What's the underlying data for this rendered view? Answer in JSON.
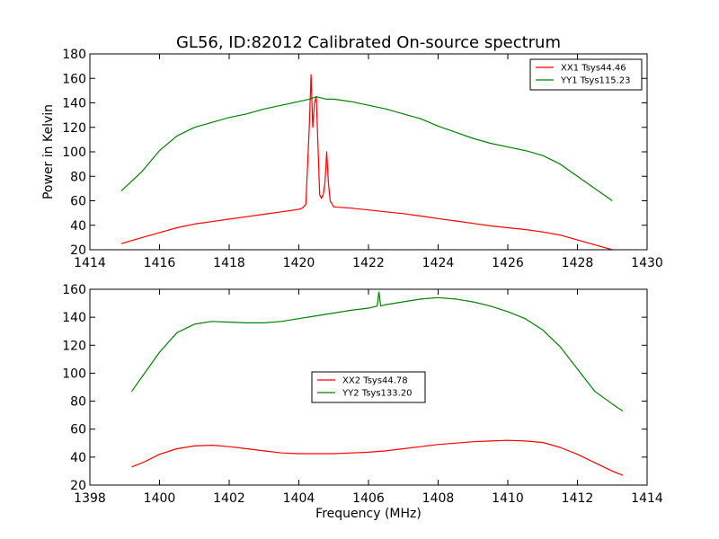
{
  "chart_data": [
    {
      "type": "line",
      "title": "GL56, ID:82012 Calibrated On-source spectrum",
      "xlabel": "",
      "ylabel": "Power in Kelvin",
      "xlim": [
        1414,
        1430
      ],
      "ylim": [
        20,
        180
      ],
      "xticks": [
        1414,
        1416,
        1418,
        1420,
        1422,
        1424,
        1426,
        1428,
        1430
      ],
      "yticks": [
        20,
        40,
        60,
        80,
        100,
        120,
        140,
        160,
        180
      ],
      "legend_position": "top-right",
      "series": [
        {
          "name": "XX1 Tsys44.46",
          "color": "#ff0000",
          "x": [
            1414.9,
            1415.5,
            1416.0,
            1416.5,
            1417.0,
            1417.5,
            1418.0,
            1418.5,
            1419.0,
            1419.5,
            1420.0,
            1420.1,
            1420.2,
            1420.3,
            1420.35,
            1420.4,
            1420.45,
            1420.5,
            1420.55,
            1420.6,
            1420.65,
            1420.7,
            1420.75,
            1420.8,
            1420.85,
            1420.9,
            1421.0,
            1421.5,
            1422.0,
            1422.5,
            1423.0,
            1423.5,
            1424.0,
            1424.5,
            1425.0,
            1425.5,
            1426.0,
            1426.5,
            1427.0,
            1427.5,
            1428.0,
            1428.5,
            1429.0
          ],
          "y": [
            25,
            30,
            34,
            38,
            41,
            43,
            45,
            47,
            49,
            51,
            53,
            54,
            57,
            120,
            163,
            120,
            140,
            145,
            105,
            65,
            62,
            65,
            75,
            100,
            75,
            60,
            55,
            54,
            52.5,
            51,
            49.5,
            47.5,
            45.5,
            43.5,
            41.5,
            39.5,
            38,
            36.5,
            34.5,
            32,
            28,
            24,
            20
          ]
        },
        {
          "name": "YY1 Tsys115.23",
          "color": "#008000",
          "x": [
            1414.9,
            1415.5,
            1416.0,
            1416.5,
            1417.0,
            1417.5,
            1418.0,
            1418.5,
            1419.0,
            1419.5,
            1420.0,
            1420.3,
            1420.5,
            1420.8,
            1421.0,
            1421.5,
            1422.0,
            1422.5,
            1423.0,
            1423.5,
            1424.0,
            1424.5,
            1425.0,
            1425.5,
            1426.0,
            1426.5,
            1427.0,
            1427.5,
            1428.0,
            1428.5,
            1429.0
          ],
          "y": [
            68,
            84,
            101,
            113,
            120,
            124,
            128,
            131,
            135,
            138,
            141,
            143,
            145,
            143,
            143,
            141,
            138,
            135,
            131,
            127,
            121,
            116,
            111,
            107,
            104,
            101,
            97,
            90,
            80,
            70,
            60
          ]
        }
      ]
    },
    {
      "type": "line",
      "title": "",
      "xlabel": "Frequency (MHz)",
      "ylabel": "",
      "xlim": [
        1398,
        1414
      ],
      "ylim": [
        20,
        160
      ],
      "xticks": [
        1398,
        1400,
        1402,
        1404,
        1406,
        1408,
        1410,
        1412,
        1414
      ],
      "yticks": [
        20,
        40,
        60,
        80,
        100,
        120,
        140,
        160
      ],
      "legend_position": "center",
      "series": [
        {
          "name": "XX2 Tsys44.78",
          "color": "#ff0000",
          "x": [
            1399.2,
            1399.6,
            1400.0,
            1400.5,
            1401.0,
            1401.5,
            1402.0,
            1402.5,
            1403.0,
            1403.5,
            1404.0,
            1404.5,
            1405.0,
            1405.5,
            1406.0,
            1406.5,
            1407.0,
            1407.5,
            1408.0,
            1408.5,
            1409.0,
            1409.5,
            1410.0,
            1410.5,
            1411.0,
            1411.5,
            1412.0,
            1412.5,
            1413.0,
            1413.3
          ],
          "y": [
            33,
            37,
            42,
            46,
            48,
            48.5,
            47.5,
            46,
            44.5,
            43,
            42.5,
            42.5,
            42.5,
            43,
            43.5,
            44.5,
            46,
            47.5,
            49,
            50,
            51,
            51.5,
            52,
            51.5,
            50.5,
            47,
            42,
            36,
            30,
            27
          ]
        },
        {
          "name": "YY2 Tsys133.20",
          "color": "#008000",
          "x": [
            1399.2,
            1399.6,
            1400.0,
            1400.5,
            1401.0,
            1401.5,
            1402.0,
            1402.5,
            1403.0,
            1403.5,
            1404.0,
            1404.5,
            1405.0,
            1405.5,
            1406.0,
            1406.25,
            1406.3,
            1406.35,
            1406.5,
            1407.0,
            1407.5,
            1408.0,
            1408.5,
            1409.0,
            1409.5,
            1410.0,
            1410.5,
            1411.0,
            1411.5,
            1412.0,
            1412.5,
            1413.0,
            1413.3
          ],
          "y": [
            87,
            101,
            115,
            129,
            135,
            137,
            136.5,
            136,
            136,
            137,
            139,
            141,
            143,
            145,
            146.5,
            148,
            158,
            148,
            149,
            151,
            153,
            154,
            153,
            151,
            148,
            144,
            139,
            131,
            119,
            103,
            87,
            78,
            73
          ]
        }
      ]
    }
  ]
}
